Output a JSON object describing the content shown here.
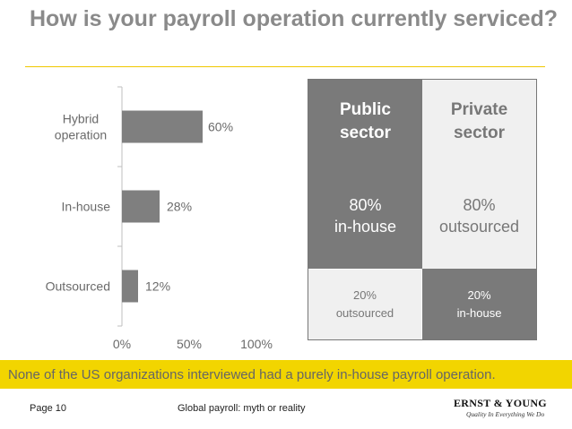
{
  "title": "How is your payroll operation currently serviced?",
  "chart_data": {
    "type": "bar",
    "orientation": "horizontal",
    "categories": [
      "Hybrid\noperation",
      "In-house",
      "Outsourced"
    ],
    "values": [
      60,
      28,
      12
    ],
    "data_labels": [
      "60%",
      "28%",
      "12%"
    ],
    "xlim": [
      0,
      100
    ],
    "x_ticks": [
      "0%",
      "50%",
      "100%"
    ],
    "grid": false,
    "bar_color": "#7f7f7f"
  },
  "sector_table": {
    "public_header": "Public\nsector",
    "private_header": "Private\nsector",
    "public_main": "80%\nin-house",
    "private_main": "80%\noutsourced",
    "public_minor": "20%\noutsourced",
    "private_minor": "20%\nin-house"
  },
  "banner": "None of the US organizations interviewed had a purely in-house payroll operation.",
  "footer": {
    "page": "Page 10",
    "doc_title": "Global payroll: myth or reality",
    "logo_name": "ERNST & YOUNG",
    "logo_tagline": "Quality In Everything We Do"
  }
}
